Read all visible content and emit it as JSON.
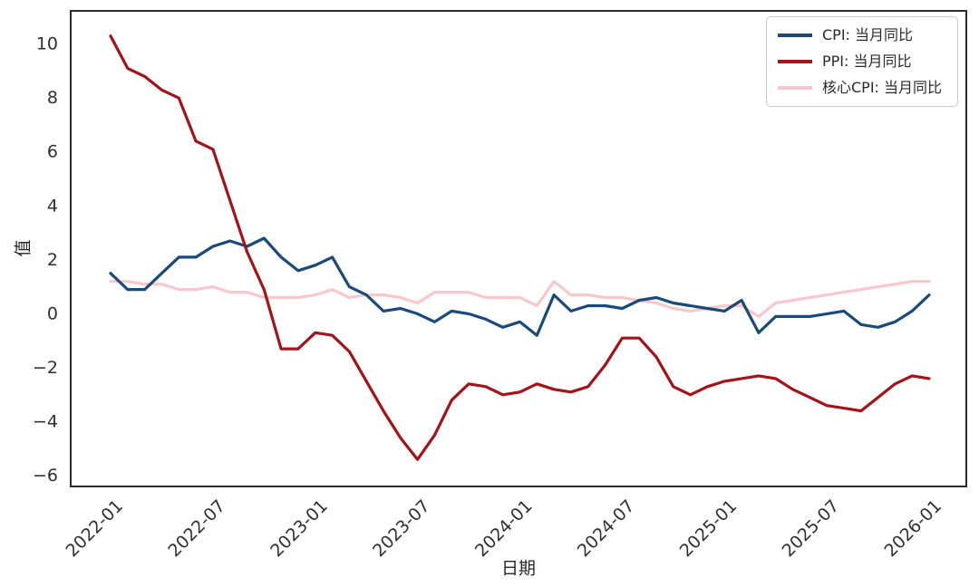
{
  "figure": {
    "background": "#ffffff",
    "ylabel": "值",
    "xlabel": "日期"
  },
  "legend": {
    "position": "upper right",
    "items": [
      {
        "key": "cpi",
        "label": "CPI: 当月同比"
      },
      {
        "key": "ppi",
        "label": "PPI: 当月同比"
      },
      {
        "key": "core_cpi",
        "label": "核心CPI: 当月同比"
      }
    ]
  },
  "chart_data": {
    "type": "line",
    "title": "",
    "xlabel": "日期",
    "ylabel": "值",
    "grid": false,
    "legend_position": "upper right",
    "ylim": [
      -6.4,
      11.23
    ],
    "yticks": [
      -6,
      -4,
      -2,
      0,
      2,
      4,
      6,
      8,
      10
    ],
    "xtick_indices": [
      0,
      6,
      12,
      18,
      24,
      30,
      36,
      42,
      48
    ],
    "xtick_labels": [
      "2022-01",
      "2022-07",
      "2023-01",
      "2023-07",
      "2024-01",
      "2024-07",
      "2025-01",
      "2025-07",
      "2026-01"
    ],
    "x": [
      "2022-01",
      "2022-02",
      "2022-03",
      "2022-04",
      "2022-05",
      "2022-06",
      "2022-07",
      "2022-08",
      "2022-09",
      "2022-10",
      "2022-11",
      "2022-12",
      "2023-01",
      "2023-02",
      "2023-03",
      "2023-04",
      "2023-05",
      "2023-06",
      "2023-07",
      "2023-08",
      "2023-09",
      "2023-10",
      "2023-11",
      "2023-12",
      "2024-01",
      "2024-02",
      "2024-03",
      "2024-04",
      "2024-05",
      "2024-06",
      "2024-07",
      "2024-08",
      "2024-09",
      "2024-10",
      "2024-11",
      "2024-12",
      "2025-01",
      "2025-02",
      "2025-03",
      "2025-04",
      "2025-05",
      "2025-06",
      "2025-07",
      "2025-08",
      "2025-09",
      "2025-10",
      "2025-11",
      "2025-12",
      "2026-01"
    ],
    "series": [
      {
        "key": "core_cpi",
        "name": "核心CPI: 当月同比",
        "color": "#F8C8CD",
        "zorder": 1,
        "values": [
          1.2,
          1.2,
          1.1,
          1.1,
          0.9,
          0.9,
          1.0,
          0.8,
          0.8,
          0.6,
          0.6,
          0.6,
          0.7,
          0.9,
          0.6,
          0.7,
          0.7,
          0.6,
          0.4,
          0.8,
          0.8,
          0.8,
          0.6,
          0.6,
          0.6,
          0.3,
          1.2,
          0.7,
          0.7,
          0.6,
          0.6,
          0.5,
          0.4,
          0.2,
          0.1,
          0.2,
          0.3,
          0.3,
          -0.1,
          0.4,
          0.5,
          0.6,
          0.7,
          0.8,
          0.9,
          1.0,
          1.1,
          1.2,
          1.2
        ]
      },
      {
        "key": "cpi",
        "name": "CPI: 当月同比",
        "color": "#1A4A7A",
        "zorder": 2,
        "values": [
          1.5,
          0.9,
          0.9,
          1.5,
          2.1,
          2.1,
          2.5,
          2.7,
          2.5,
          2.8,
          2.1,
          1.6,
          1.8,
          2.1,
          1.0,
          0.7,
          0.1,
          0.2,
          0.0,
          -0.3,
          0.1,
          0.0,
          -0.2,
          -0.5,
          -0.3,
          -0.8,
          0.7,
          0.1,
          0.3,
          0.3,
          0.2,
          0.5,
          0.6,
          0.4,
          0.3,
          0.2,
          0.1,
          0.5,
          -0.7,
          -0.1,
          -0.1,
          -0.1,
          0.0,
          0.1,
          -0.4,
          -0.5,
          -0.3,
          0.1,
          0.7
        ]
      },
      {
        "key": "ppi",
        "name": "PPI: 当月同比",
        "color": "#A31318",
        "zorder": 3,
        "values": [
          10.3,
          9.1,
          8.8,
          8.3,
          8.0,
          6.4,
          6.1,
          4.2,
          2.3,
          0.9,
          -1.3,
          -1.3,
          -0.7,
          -0.8,
          -1.4,
          -2.5,
          -3.6,
          -4.6,
          -5.4,
          -4.5,
          -3.2,
          -2.6,
          -2.7,
          -3.0,
          -2.9,
          -2.6,
          -2.8,
          -2.9,
          -2.7,
          -1.9,
          -0.9,
          -0.9,
          -1.6,
          -2.7,
          -3.0,
          -2.7,
          -2.5,
          -2.4,
          -2.3,
          -2.4,
          -2.8,
          -3.1,
          -3.4,
          -3.5,
          -3.6,
          -3.1,
          -2.6,
          -2.3,
          -2.4
        ]
      }
    ],
    "style": {
      "spine_color": "#2a2a2a",
      "tick_label_color": "#303030",
      "line_width": 3.2
    }
  }
}
